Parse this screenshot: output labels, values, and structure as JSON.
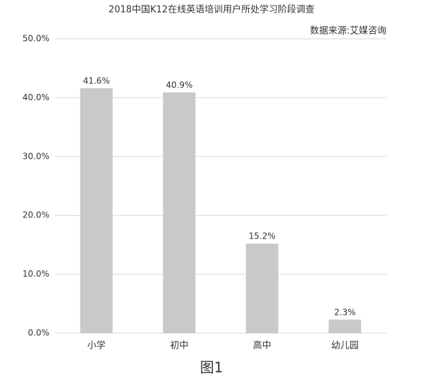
{
  "chart_data": {
    "type": "bar",
    "title": "2018中国K12在线英语培训用户所处学习阶段调查",
    "source": "数据来源:艾媒咨询",
    "caption": "图1",
    "categories": [
      "小学",
      "初中",
      "高中",
      "幼儿园"
    ],
    "values": [
      41.6,
      40.9,
      15.2,
      2.3
    ],
    "value_labels": [
      "41.6%",
      "40.9%",
      "15.2%",
      "2.3%"
    ],
    "color": "#c9c9c9",
    "ylim": [
      0,
      50
    ],
    "yticks": [
      {
        "value": 0,
        "label": "0.0%"
      },
      {
        "value": 10,
        "label": "10.0%"
      },
      {
        "value": 20,
        "label": "20.0%"
      },
      {
        "value": 30,
        "label": "30.0%"
      },
      {
        "value": 40,
        "label": "40.0%"
      },
      {
        "value": 50,
        "label": "50.0%"
      }
    ],
    "grid": true
  }
}
